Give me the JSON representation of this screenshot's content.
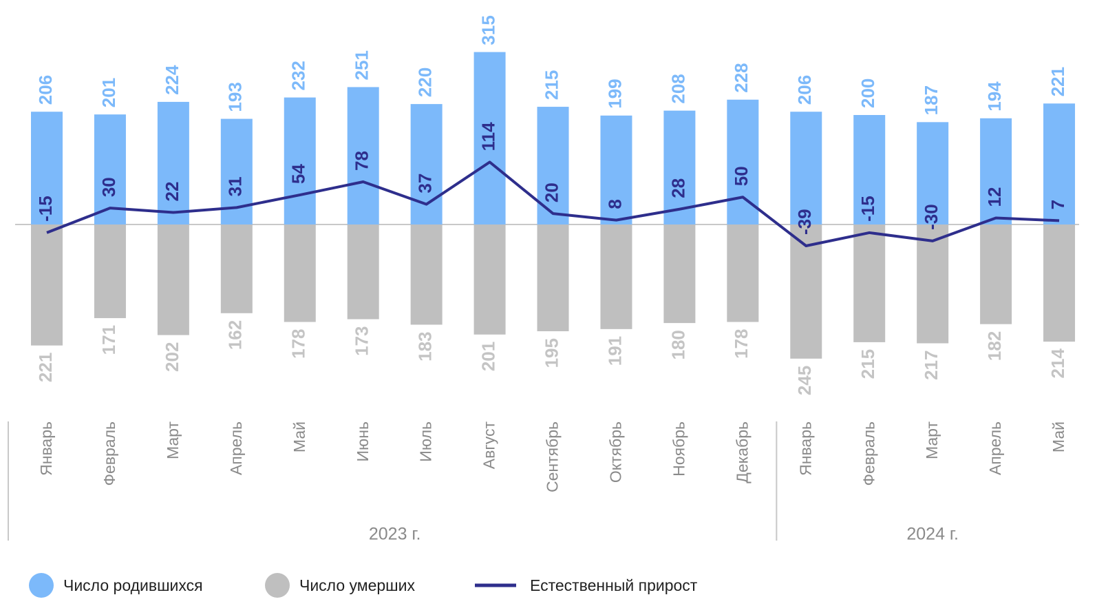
{
  "chart_data": {
    "type": "bar-line",
    "groups": [
      {
        "label": "2023 г.",
        "categories": [
          "Январь",
          "Февраль",
          "Март",
          "Апрель",
          "Май",
          "Июнь",
          "Июль",
          "Август",
          "Сентябрь",
          "Октябрь",
          "Ноябрь",
          "Декабрь"
        ]
      },
      {
        "label": "2024 г.",
        "categories": [
          "Январь",
          "Февраль",
          "Март",
          "Апрель",
          "Май"
        ]
      }
    ],
    "series": [
      {
        "name": "Число родившихся",
        "type": "bar",
        "color": "#7cb9fa",
        "label_color": "#7cb9fa",
        "values": [
          206,
          201,
          224,
          193,
          232,
          251,
          220,
          315,
          215,
          199,
          208,
          228,
          206,
          200,
          187,
          194,
          221
        ]
      },
      {
        "name": "Число умерших",
        "type": "bar",
        "color": "#bfbfbf",
        "label_color": "#c4c4c4",
        "values": [
          221,
          171,
          202,
          162,
          178,
          173,
          183,
          201,
          195,
          191,
          180,
          178,
          245,
          215,
          217,
          182,
          214
        ]
      },
      {
        "name": "Естественный прирост",
        "type": "line",
        "color": "#2e2e8c",
        "label_color": "#2e2e8c",
        "values": [
          -15,
          30,
          22,
          31,
          54,
          78,
          37,
          114,
          20,
          8,
          28,
          50,
          -39,
          -15,
          -30,
          12,
          7
        ]
      }
    ]
  }
}
